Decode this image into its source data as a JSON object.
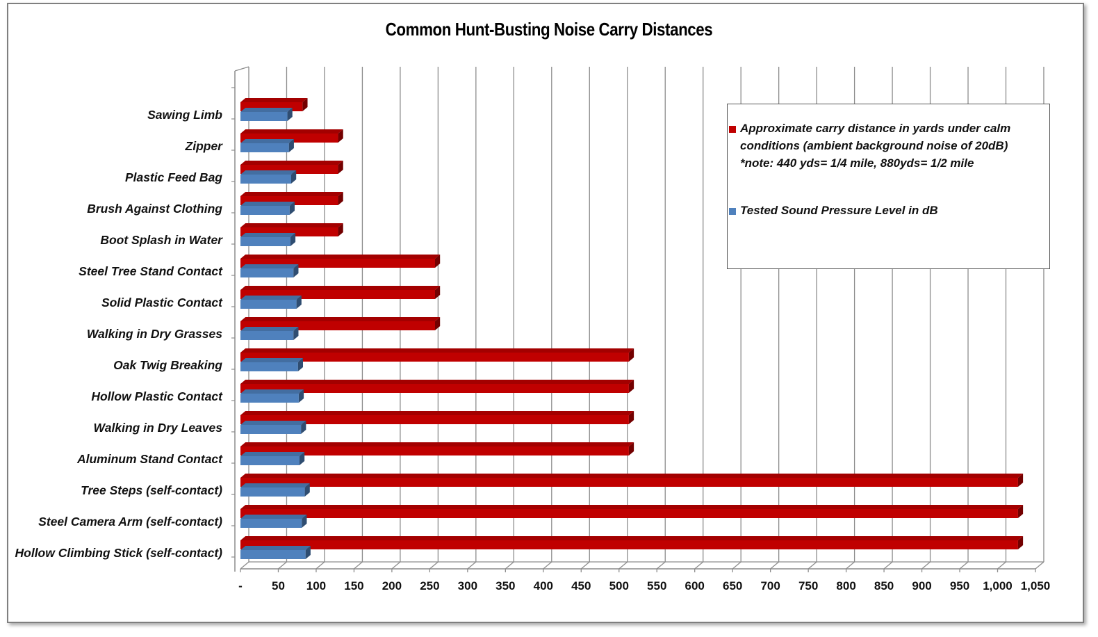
{
  "colors": {
    "red": "#c00000",
    "blue": "#4f81bd"
  },
  "chart_data": {
    "type": "bar",
    "orientation": "horizontal",
    "title": "Common Hunt-Busting Noise Carry Distances",
    "categories": [
      "Sawing Limb",
      "Zipper",
      "Plastic Feed Bag",
      "Brush Against Clothing",
      "Boot Splash in Water",
      "Steel Tree Stand Contact",
      "Solid Plastic Contact",
      "Walking in Dry Grasses",
      "Oak Twig Breaking",
      "Hollow Plastic Contact",
      "Walking in Dry Leaves",
      "Aluminum Stand Contact",
      "Tree Steps (self-contact)",
      "Steel Camera Arm (self-contact)",
      "Hollow Climbing Stick (self-contact)"
    ],
    "series": [
      {
        "name": "Approximate carry distance in yards under calm conditions (ambient background noise of 20dB)\n*note: 440 yds= 1/4 mile, 880yds= 1/2 mile",
        "color": "#c00000",
        "values": [
          82,
          129,
          129,
          129,
          129,
          257,
          257,
          257,
          513,
          513,
          513,
          513,
          1027,
          1027,
          1027
        ]
      },
      {
        "name": "Tested Sound Pressure Level in dB",
        "color": "#4f81bd",
        "values": [
          62,
          64,
          67,
          65,
          66,
          70,
          74,
          70,
          76,
          77,
          80,
          78,
          85,
          81,
          86
        ]
      }
    ],
    "xlim": [
      0,
      1050
    ],
    "x_ticks": [
      "-",
      "50",
      "100",
      "150",
      "200",
      "250",
      "300",
      "350",
      "400",
      "450",
      "500",
      "550",
      "600",
      "650",
      "700",
      "750",
      "800",
      "850",
      "900",
      "950",
      "1,000",
      "1,050"
    ],
    "grid": true,
    "legend_position": "top-right"
  }
}
